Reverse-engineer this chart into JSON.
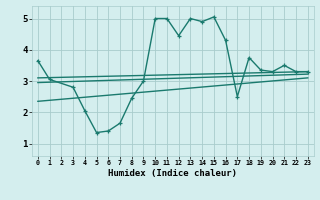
{
  "xlabel": "Humidex (Indice chaleur)",
  "bg_color": "#d4eeee",
  "grid_color": "#a8cccc",
  "line_color": "#1a7a6e",
  "xlim": [
    -0.5,
    23.5
  ],
  "ylim": [
    0.6,
    5.4
  ],
  "xticks": [
    0,
    1,
    2,
    3,
    4,
    5,
    6,
    7,
    8,
    9,
    10,
    11,
    12,
    13,
    14,
    15,
    16,
    17,
    18,
    19,
    20,
    21,
    22,
    23
  ],
  "yticks": [
    1,
    2,
    3,
    4,
    5
  ],
  "line1_x": [
    0,
    1,
    3,
    4,
    5,
    6,
    7,
    8,
    9,
    10,
    11,
    12,
    13,
    14,
    15,
    16,
    17,
    18,
    19,
    20,
    21,
    22,
    23
  ],
  "line1_y": [
    3.65,
    3.05,
    2.8,
    2.05,
    1.35,
    1.4,
    1.65,
    2.45,
    3.0,
    5.0,
    5.0,
    4.45,
    5.0,
    4.9,
    5.05,
    4.3,
    2.5,
    3.75,
    3.35,
    3.3,
    3.5,
    3.3,
    3.3
  ],
  "line2_x": [
    0,
    23
  ],
  "line2_y": [
    3.1,
    3.3
  ],
  "line3_x": [
    0,
    23
  ],
  "line3_y": [
    2.95,
    3.22
  ],
  "line4_x": [
    0,
    23
  ],
  "line4_y": [
    2.35,
    3.1
  ],
  "marker_size": 3.5,
  "line_width": 1.0
}
